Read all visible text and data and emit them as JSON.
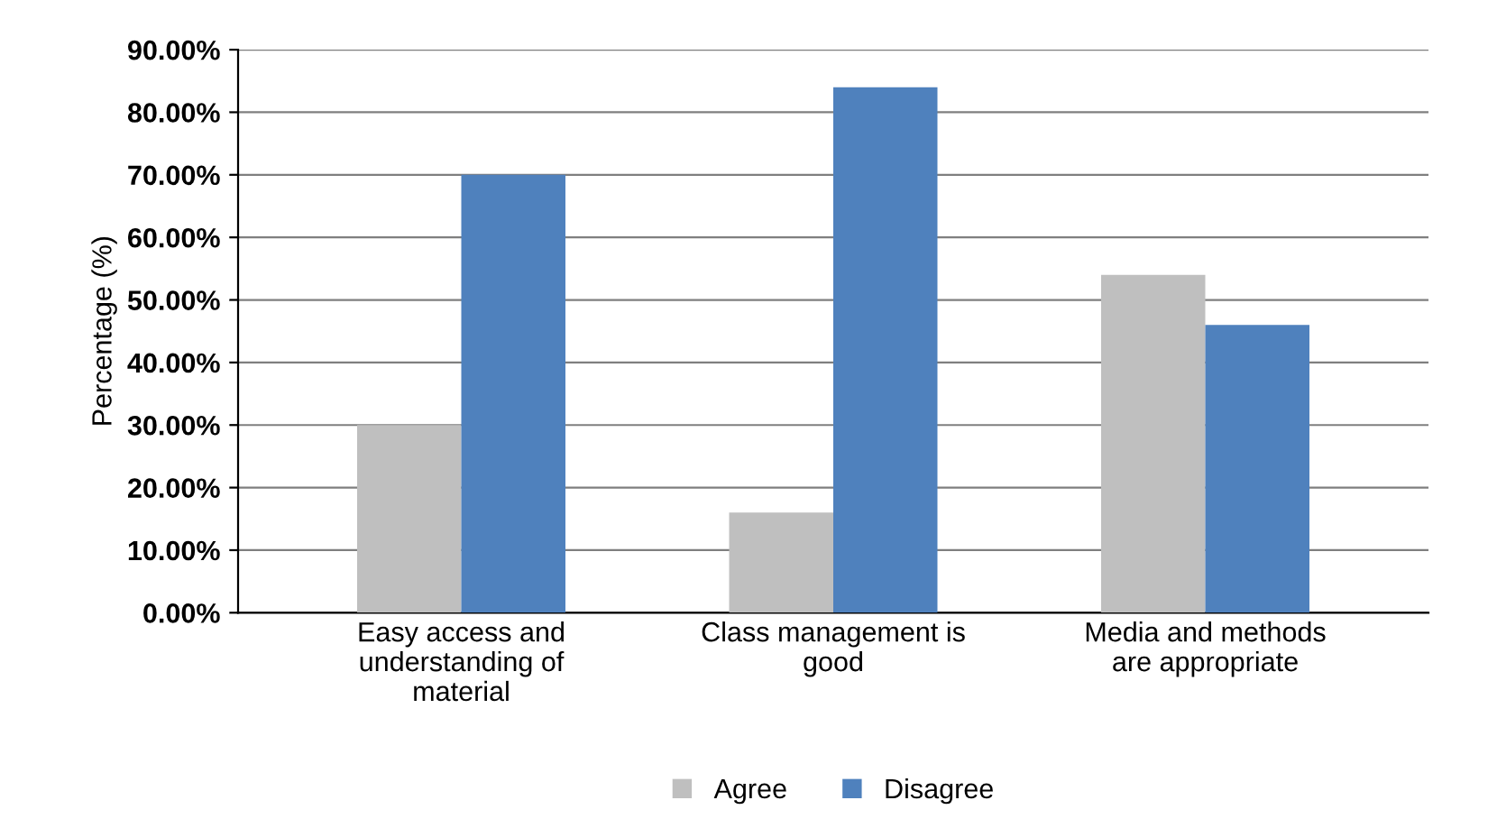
{
  "chart_data": {
    "type": "bar",
    "ylabel": "Percentage (%)",
    "categories": [
      "Easy access and\nunderstanding of\nmaterial",
      "Class management is\ngood",
      "Media and methods\nare appropriate"
    ],
    "series": [
      {
        "name": "Agree",
        "color": "#bfbfbf",
        "values": [
          30,
          16,
          54
        ]
      },
      {
        "name": "Disagree",
        "color": "#4f81bd",
        "values": [
          70,
          84,
          46
        ]
      }
    ],
    "ylim": [
      0,
      90
    ],
    "yticks": [
      {
        "value": 0,
        "label": "0.00%"
      },
      {
        "value": 10,
        "label": "10.00%"
      },
      {
        "value": 20,
        "label": "20.00%"
      },
      {
        "value": 30,
        "label": "30.00%"
      },
      {
        "value": 40,
        "label": "40.00%"
      },
      {
        "value": 50,
        "label": "50.00%"
      },
      {
        "value": 60,
        "label": "60.00%"
      },
      {
        "value": 70,
        "label": "70.00%"
      },
      {
        "value": 80,
        "label": "80.00%"
      },
      {
        "value": 90,
        "label": "90.00%"
      }
    ],
    "grid": "y",
    "legend": "bottom"
  }
}
